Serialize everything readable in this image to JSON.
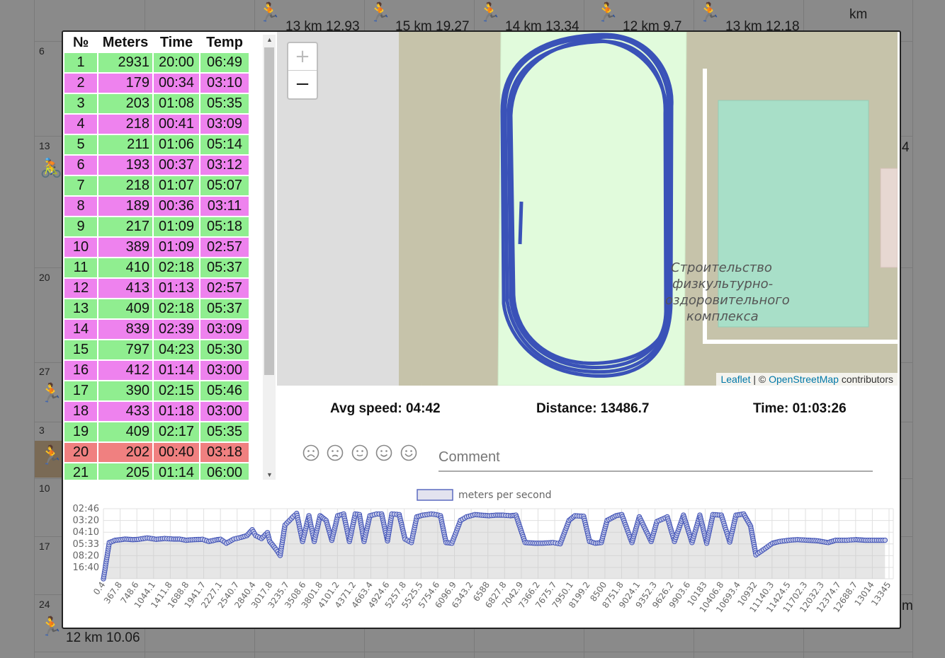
{
  "calendar": {
    "header_cells": [
      {
        "text": "13 km 12.93"
      },
      {
        "text": "15 km 19.27"
      },
      {
        "text": "14 km 13.34"
      },
      {
        "text": "12 km 9.7"
      },
      {
        "text": "13 km 12.18"
      },
      {
        "text": "km"
      }
    ],
    "day_numbers": [
      "6",
      "13",
      "20",
      "27",
      "3",
      "10",
      "17",
      "24"
    ],
    "bottom_entry": "12 km 10.06",
    "right_edge_chars": [
      "4",
      "m"
    ]
  },
  "laps": {
    "headers": [
      "№",
      "Meters",
      "Time",
      "Temp"
    ],
    "rows": [
      {
        "n": "1",
        "meters": "2931",
        "time": "20:00",
        "temp": "06:49",
        "kind": "g"
      },
      {
        "n": "2",
        "meters": "179",
        "time": "00:34",
        "temp": "03:10",
        "kind": "p"
      },
      {
        "n": "3",
        "meters": "203",
        "time": "01:08",
        "temp": "05:35",
        "kind": "g"
      },
      {
        "n": "4",
        "meters": "218",
        "time": "00:41",
        "temp": "03:09",
        "kind": "p"
      },
      {
        "n": "5",
        "meters": "211",
        "time": "01:06",
        "temp": "05:14",
        "kind": "g"
      },
      {
        "n": "6",
        "meters": "193",
        "time": "00:37",
        "temp": "03:12",
        "kind": "p"
      },
      {
        "n": "7",
        "meters": "218",
        "time": "01:07",
        "temp": "05:07",
        "kind": "g"
      },
      {
        "n": "8",
        "meters": "189",
        "time": "00:36",
        "temp": "03:11",
        "kind": "p"
      },
      {
        "n": "9",
        "meters": "217",
        "time": "01:09",
        "temp": "05:18",
        "kind": "g"
      },
      {
        "n": "10",
        "meters": "389",
        "time": "01:09",
        "temp": "02:57",
        "kind": "p"
      },
      {
        "n": "11",
        "meters": "410",
        "time": "02:18",
        "temp": "05:37",
        "kind": "g"
      },
      {
        "n": "12",
        "meters": "413",
        "time": "01:13",
        "temp": "02:57",
        "kind": "p"
      },
      {
        "n": "13",
        "meters": "409",
        "time": "02:18",
        "temp": "05:37",
        "kind": "g"
      },
      {
        "n": "14",
        "meters": "839",
        "time": "02:39",
        "temp": "03:09",
        "kind": "p"
      },
      {
        "n": "15",
        "meters": "797",
        "time": "04:23",
        "temp": "05:30",
        "kind": "g"
      },
      {
        "n": "16",
        "meters": "412",
        "time": "01:14",
        "temp": "03:00",
        "kind": "p"
      },
      {
        "n": "17",
        "meters": "390",
        "time": "02:15",
        "temp": "05:46",
        "kind": "g"
      },
      {
        "n": "18",
        "meters": "433",
        "time": "01:18",
        "temp": "03:00",
        "kind": "p"
      },
      {
        "n": "19",
        "meters": "409",
        "time": "02:17",
        "temp": "05:35",
        "kind": "g"
      },
      {
        "n": "20",
        "meters": "202",
        "time": "00:40",
        "temp": "03:18",
        "kind": "r"
      },
      {
        "n": "21",
        "meters": "205",
        "time": "01:14",
        "temp": "06:00",
        "kind": "g"
      }
    ]
  },
  "map": {
    "zoom_in": "+",
    "zoom_out": "−",
    "label_lines": [
      "Строительство",
      "физкультурно-",
      "оздоровительного",
      "комплекса"
    ],
    "attribution": {
      "leaflet": "Leaflet",
      "sep": " | © ",
      "osm": "OpenStreetMap",
      "suffix": " contributors"
    },
    "colors": {
      "land": "#c6c3aa",
      "field": "#e1fbdc",
      "pitch": "#a8dfc8",
      "track": "#3a52b8",
      "road": "#ffffff"
    }
  },
  "stats": {
    "avg_speed": "Avg speed: 04:42",
    "distance": "Distance: 13486.7",
    "time": "Time: 01:03:26"
  },
  "mood_icons": [
    "very-sad-face-icon",
    "sad-face-icon",
    "neutral-face-icon",
    "smile-face-icon",
    "happy-face-icon"
  ],
  "comment": {
    "placeholder": "Comment"
  },
  "chart_data": {
    "type": "line",
    "legend": "meters per second",
    "y_tick_labels": [
      "02:46",
      "03:20",
      "04:10",
      "05:33",
      "08:20",
      "16:40"
    ],
    "x_tick_labels": [
      "0.4",
      "367.8",
      "748.6",
      "1044.1",
      "1411.8",
      "1688.8",
      "1941.7",
      "2227.1",
      "2540.7",
      "2840.4",
      "3017.8",
      "3235.7",
      "3508.6",
      "3801.8",
      "4101.2",
      "4371.2",
      "4663.4",
      "4924.6",
      "5257.8",
      "5525.5",
      "5754.6",
      "6096.9",
      "6343.2",
      "6588",
      "6827.8",
      "7042.9",
      "7366.2",
      "7675.7",
      "7950.1",
      "8199.2",
      "8500",
      "8751.8",
      "9024.1",
      "9352.3",
      "9626.2",
      "9903.6",
      "10183",
      "10406.8",
      "10693.4",
      "10932",
      "11140.3",
      "11424.5",
      "11702.3",
      "12032.3",
      "12374.7",
      "12688.7",
      "13014",
      "13345"
    ],
    "ylim": [
      0,
      6
    ],
    "series": [
      {
        "name": "meters per second",
        "x": [
          0.4,
          100,
          200,
          300,
          367.8,
          500,
          600,
          748.6,
          900,
          1044.1,
          1200,
          1300,
          1411.8,
          1550,
          1688.8,
          1800,
          1941.7,
          2000,
          2100,
          2227.1,
          2350,
          2450,
          2540.7,
          2600,
          2700,
          2800,
          2840.4,
          2950,
          3017.8,
          3100,
          3235.7,
          3300,
          3400,
          3508.6,
          3600,
          3700,
          3801.8,
          3900,
          4000,
          4101.2,
          4200,
          4300,
          4371.2,
          4450,
          4550,
          4663.4,
          4750,
          4850,
          4924.6,
          5050,
          5150,
          5257.8,
          5350,
          5450,
          5525.5,
          5600,
          5680,
          5754.6,
          5850,
          5950,
          6096.9,
          6200,
          6343.2,
          6450,
          6588,
          6700,
          6827.8,
          6950,
          7042.9,
          7200,
          7366.2,
          7500,
          7675.7,
          7800,
          7950.1,
          8050,
          8199.2,
          8300,
          8400,
          8500,
          8600,
          8751.8,
          8850,
          9024.1,
          9150,
          9352.3,
          9450,
          9626.2,
          9750,
          9903.6,
          10050,
          10183,
          10300,
          10406.8,
          10550,
          10693.4,
          10800,
          10932,
          11050,
          11140.3,
          11300,
          11424.5,
          11550,
          11702.3,
          11850,
          12032.3,
          12200,
          12374.7,
          12500,
          12688.7,
          12850,
          13014,
          13200,
          13345
        ],
        "y": [
          0.0,
          3.1,
          3.3,
          3.35,
          3.4,
          3.35,
          3.38,
          3.5,
          3.38,
          3.45,
          3.4,
          3.4,
          3.3,
          3.35,
          3.38,
          3.2,
          3.35,
          3.38,
          3.05,
          3.4,
          3.55,
          3.7,
          4.2,
          3.7,
          3.45,
          3.95,
          3.2,
          2.5,
          2.0,
          4.6,
          5.3,
          5.6,
          3.2,
          5.4,
          3.2,
          5.4,
          5.0,
          3.3,
          5.4,
          5.55,
          3.2,
          5.55,
          5.5,
          3.2,
          5.4,
          5.55,
          5.55,
          3.25,
          5.55,
          5.5,
          3.4,
          3.1,
          5.3,
          5.45,
          5.5,
          5.55,
          5.5,
          5.4,
          3.1,
          3.05,
          5.0,
          5.3,
          5.5,
          5.45,
          5.4,
          5.45,
          5.45,
          5.4,
          5.45,
          3.1,
          3.05,
          3.05,
          3.1,
          3.0,
          5.0,
          5.4,
          5.35,
          3.2,
          3.05,
          3.1,
          5.0,
          5.4,
          5.5,
          3.1,
          5.3,
          3.2,
          4.9,
          5.3,
          3.2,
          5.45,
          3.1,
          5.45,
          3.05,
          5.5,
          5.45,
          3.15,
          5.45,
          5.55,
          4.5,
          2.05,
          2.6,
          3.05,
          3.2,
          3.3,
          3.35,
          3.3,
          3.25,
          3.1,
          3.3,
          3.3,
          3.35,
          3.3,
          3.3,
          3.3
        ]
      }
    ]
  }
}
